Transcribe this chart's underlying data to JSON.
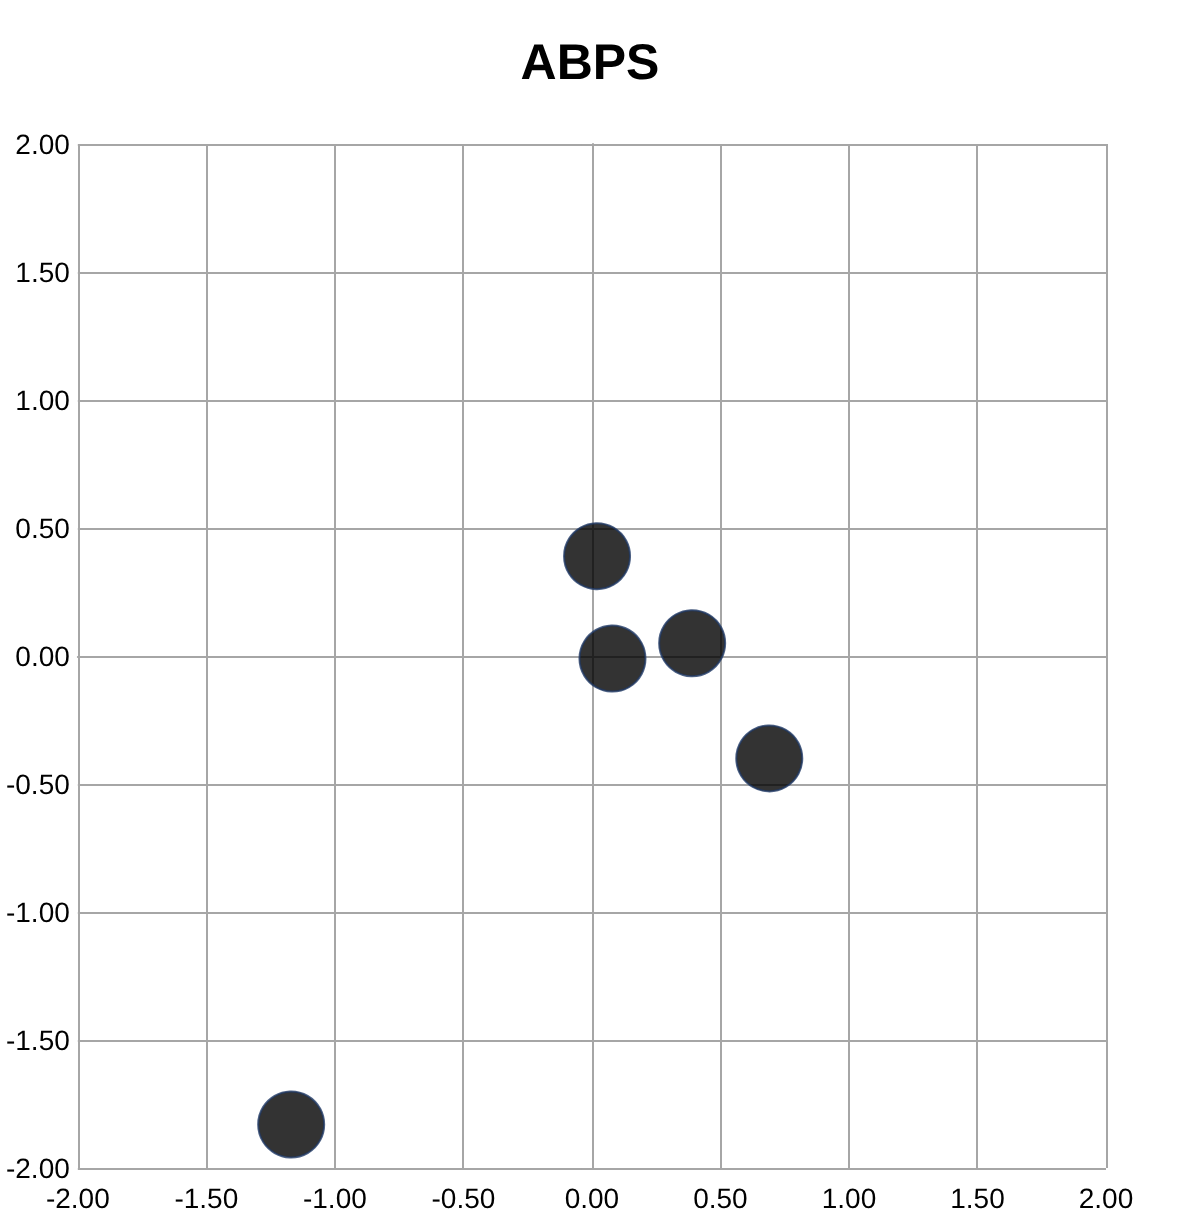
{
  "chart_data": {
    "type": "scatter",
    "title": "ABPS",
    "x": [
      0.02,
      0.08,
      0.39,
      0.69,
      -1.17
    ],
    "series": [
      {
        "color": "#000000",
        "values": [
          0.39,
          -0.01,
          0.05,
          -0.4,
          -1.83
        ]
      }
    ],
    "xlim": [
      -2,
      2
    ],
    "ylim": [
      -2,
      2
    ],
    "xticks": [
      {
        "value": -2,
        "label": "-2.00"
      },
      {
        "value": -1.5,
        "label": "-1.50"
      },
      {
        "value": -1,
        "label": "-1.00"
      },
      {
        "value": -0.5,
        "label": "-0.50"
      },
      {
        "value": 0,
        "label": "0.00"
      },
      {
        "value": 0.5,
        "label": "0.50"
      },
      {
        "value": 1,
        "label": "1.00"
      },
      {
        "value": 1.5,
        "label": "1.50"
      },
      {
        "value": 2,
        "label": "2.00"
      }
    ],
    "yticks": [
      {
        "value": -2,
        "label": "-2.00"
      },
      {
        "value": -1.5,
        "label": "-1.50"
      },
      {
        "value": -1,
        "label": "-1.00"
      },
      {
        "value": -0.5,
        "label": "-0.50"
      },
      {
        "value": 0,
        "label": "0.00"
      },
      {
        "value": 0.5,
        "label": "0.50"
      },
      {
        "value": 1,
        "label": "1.00"
      },
      {
        "value": 1.5,
        "label": "1.50"
      },
      {
        "value": 2,
        "label": "2.00"
      }
    ],
    "grid": true,
    "marker": "circle"
  }
}
